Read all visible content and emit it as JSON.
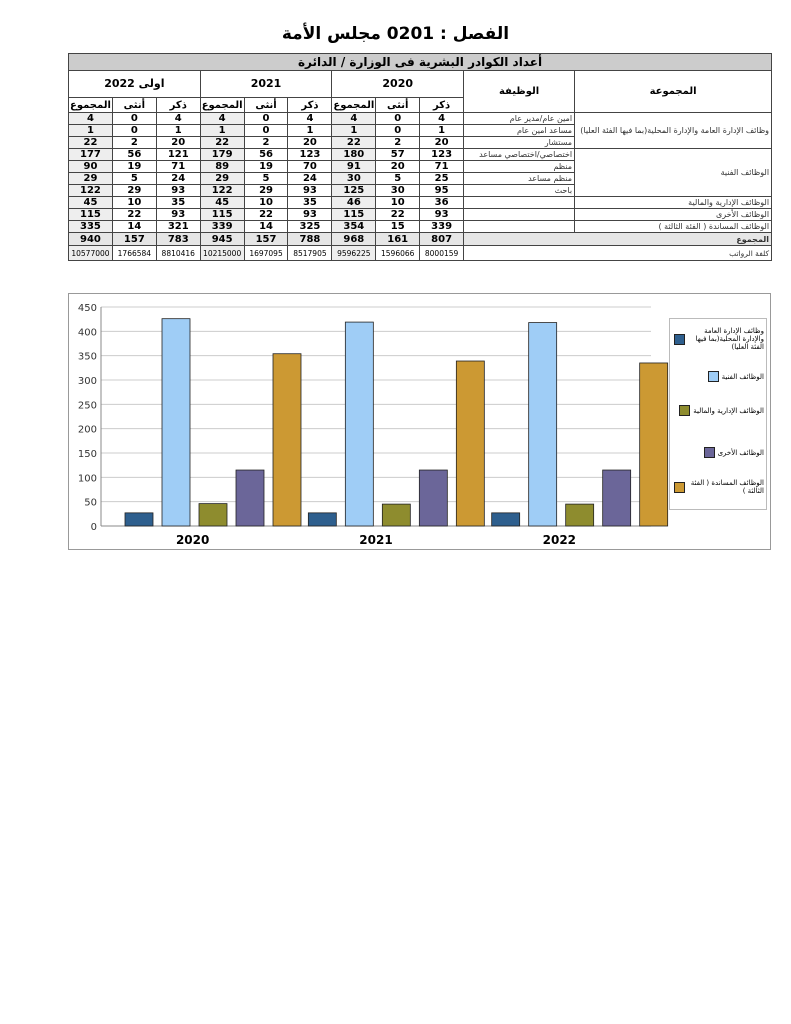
{
  "title": "الفصل : 0201  مجلس الأمة",
  "table": {
    "caption": "أعداد الكوادر البشرية فى الوزارة / الدائرة",
    "col_group": "المجموعة",
    "col_job": "الوظيفة",
    "years": [
      "2020",
      "2021",
      "اولى 2022"
    ],
    "sub": [
      "ذكر",
      "أنثى",
      "المجموع"
    ],
    "rows": [
      {
        "group": "وظائف الإدارة العامة والإدارة المحلية(بما فيها الفئة العليا)",
        "job": "امين عام/مدير عام",
        "v": [
          4,
          0,
          4,
          4,
          0,
          4,
          4,
          0,
          4
        ]
      },
      {
        "group": "",
        "job": "مساعد امين عام",
        "v": [
          1,
          0,
          1,
          1,
          0,
          1,
          1,
          0,
          1
        ]
      },
      {
        "group": "",
        "job": "مستشار",
        "v": [
          20,
          2,
          22,
          20,
          2,
          22,
          20,
          2,
          22
        ]
      },
      {
        "group": "الوظائف الفنية",
        "job": "اختصاصي/اختصاصي مساعد",
        "v": [
          123,
          57,
          180,
          123,
          56,
          179,
          121,
          56,
          177
        ]
      },
      {
        "group": "",
        "job": "منظم",
        "v": [
          71,
          20,
          91,
          70,
          19,
          89,
          71,
          19,
          90
        ]
      },
      {
        "group": "",
        "job": "منظم مساعد",
        "v": [
          25,
          5,
          30,
          24,
          5,
          29,
          24,
          5,
          29
        ]
      },
      {
        "group": "",
        "job": "باحث",
        "v": [
          95,
          30,
          125,
          93,
          29,
          122,
          93,
          29,
          122
        ]
      },
      {
        "group": "الوظائف الإدارية والمالية",
        "job": "",
        "v": [
          36,
          10,
          46,
          35,
          10,
          45,
          35,
          10,
          45
        ]
      },
      {
        "group": "الوظائف الأخرى",
        "job": "",
        "v": [
          93,
          22,
          115,
          93,
          22,
          115,
          93,
          22,
          115
        ]
      },
      {
        "group": "الوظائف المساندة ( الفئة الثالثة )",
        "job": "",
        "v": [
          339,
          15,
          354,
          325,
          14,
          339,
          321,
          14,
          335
        ]
      }
    ],
    "total_label": "المجموع",
    "total": [
      807,
      161,
      968,
      788,
      157,
      945,
      783,
      157,
      940
    ],
    "salary_label": "كلفة الرواتب",
    "salary": [
      8000159,
      1596066,
      9596225,
      8517905,
      1697095,
      10215000,
      8810416,
      1766584,
      10577000
    ]
  },
  "chart_data": {
    "type": "bar",
    "categories": [
      "2020",
      "2021",
      "2022"
    ],
    "ylim": [
      0,
      450
    ],
    "yticks": [
      0,
      50,
      100,
      150,
      200,
      250,
      300,
      350,
      400,
      450
    ],
    "grid": true,
    "legend": "right",
    "series": [
      {
        "name": "وظائف الإدارة العامة والإدارة المحلية(بما فيها الفئة العليا)",
        "color": "#2e5f8e",
        "values": [
          27,
          27,
          27
        ]
      },
      {
        "name": "الوظائف الفنية",
        "color": "#9fcdf6",
        "values": [
          426,
          419,
          418
        ]
      },
      {
        "name": "الوظائف الإدارية والمالية",
        "color": "#8e8c2e",
        "values": [
          46,
          45,
          45
        ]
      },
      {
        "name": "الوظائف الأخرى",
        "color": "#6b6699",
        "values": [
          115,
          115,
          115
        ]
      },
      {
        "name": "الوظائف المساندة ( الفئة الثالثة )",
        "color": "#cc9933",
        "values": [
          354,
          339,
          335
        ]
      }
    ]
  }
}
